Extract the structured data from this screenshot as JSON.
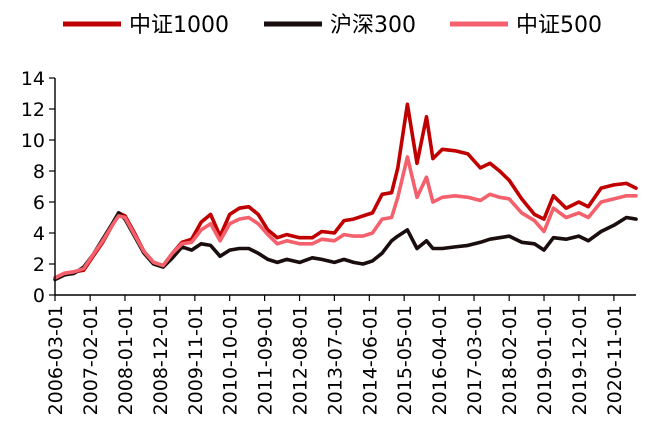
{
  "chart_data": {
    "type": "line",
    "title": "",
    "xlabel": "",
    "ylabel": "",
    "ylim": [
      0,
      14
    ],
    "yticks": [
      0,
      2,
      4,
      6,
      8,
      10,
      12,
      14
    ],
    "grid": false,
    "legend_position": "top",
    "x_tick_labels": [
      "2006-03-01",
      "2007-02-01",
      "2008-01-01",
      "2008-12-01",
      "2009-11-01",
      "2010-10-01",
      "2011-09-01",
      "2012-08-01",
      "2013-07-01",
      "2014-06-01",
      "2015-05-01",
      "2016-04-01",
      "2017-03-01",
      "2018-02-01",
      "2019-01-01",
      "2019-12-01",
      "2020-11-01"
    ],
    "x_range": [
      "2006-03-01",
      "2021-06-01"
    ],
    "series": [
      {
        "name": "中证1000",
        "color": "#c00000",
        "points": [
          [
            "2006-03-01",
            1.1
          ],
          [
            "2006-06-01",
            1.4
          ],
          [
            "2006-09-01",
            1.5
          ],
          [
            "2006-12-01",
            1.6
          ],
          [
            "2007-03-01",
            2.5
          ],
          [
            "2007-06-01",
            3.4
          ],
          [
            "2007-09-01",
            4.5
          ],
          [
            "2007-11-01",
            5.3
          ],
          [
            "2008-01-01",
            5.1
          ],
          [
            "2008-04-01",
            4.0
          ],
          [
            "2008-07-01",
            2.8
          ],
          [
            "2008-10-01",
            2.1
          ],
          [
            "2009-01-01",
            1.9
          ],
          [
            "2009-04-01",
            2.7
          ],
          [
            "2009-07-01",
            3.4
          ],
          [
            "2009-10-01",
            3.6
          ],
          [
            "2010-01-01",
            4.7
          ],
          [
            "2010-04-01",
            5.2
          ],
          [
            "2010-07-01",
            3.8
          ],
          [
            "2010-10-01",
            5.2
          ],
          [
            "2011-01-01",
            5.6
          ],
          [
            "2011-04-01",
            5.7
          ],
          [
            "2011-07-01",
            5.2
          ],
          [
            "2011-10-01",
            4.2
          ],
          [
            "2012-01-01",
            3.7
          ],
          [
            "2012-04-01",
            3.9
          ],
          [
            "2012-08-01",
            3.7
          ],
          [
            "2012-12-01",
            3.7
          ],
          [
            "2013-03-01",
            4.1
          ],
          [
            "2013-07-01",
            4.0
          ],
          [
            "2013-10-01",
            4.8
          ],
          [
            "2014-01-01",
            4.9
          ],
          [
            "2014-04-01",
            5.1
          ],
          [
            "2014-07-01",
            5.3
          ],
          [
            "2014-10-01",
            6.5
          ],
          [
            "2015-01-01",
            6.6
          ],
          [
            "2015-03-01",
            8.2
          ],
          [
            "2015-06-01",
            12.3
          ],
          [
            "2015-09-01",
            8.5
          ],
          [
            "2015-12-01",
            11.5
          ],
          [
            "2016-02-01",
            8.8
          ],
          [
            "2016-05-01",
            9.4
          ],
          [
            "2016-09-01",
            9.3
          ],
          [
            "2017-01-01",
            9.1
          ],
          [
            "2017-05-01",
            8.2
          ],
          [
            "2017-08-01",
            8.5
          ],
          [
            "2017-11-01",
            8.0
          ],
          [
            "2018-02-01",
            7.4
          ],
          [
            "2018-06-01",
            6.2
          ],
          [
            "2018-10-01",
            5.2
          ],
          [
            "2019-01-01",
            4.9
          ],
          [
            "2019-04-01",
            6.4
          ],
          [
            "2019-08-01",
            5.6
          ],
          [
            "2019-12-01",
            6.0
          ],
          [
            "2020-03-01",
            5.7
          ],
          [
            "2020-07-01",
            6.9
          ],
          [
            "2020-11-01",
            7.1
          ],
          [
            "2021-03-01",
            7.2
          ],
          [
            "2021-06-01",
            6.9
          ]
        ]
      },
      {
        "name": "沪深300",
        "color": "#1a0d0d",
        "points": [
          [
            "2006-03-01",
            1.0
          ],
          [
            "2006-06-01",
            1.3
          ],
          [
            "2006-09-01",
            1.4
          ],
          [
            "2006-12-01",
            1.8
          ],
          [
            "2007-03-01",
            2.6
          ],
          [
            "2007-06-01",
            3.6
          ],
          [
            "2007-09-01",
            4.6
          ],
          [
            "2007-11-01",
            5.3
          ],
          [
            "2008-01-01",
            4.9
          ],
          [
            "2008-04-01",
            3.8
          ],
          [
            "2008-07-01",
            2.7
          ],
          [
            "2008-10-01",
            2.0
          ],
          [
            "2009-01-01",
            1.8
          ],
          [
            "2009-04-01",
            2.4
          ],
          [
            "2009-07-01",
            3.1
          ],
          [
            "2009-10-01",
            2.9
          ],
          [
            "2010-01-01",
            3.3
          ],
          [
            "2010-04-01",
            3.2
          ],
          [
            "2010-07-01",
            2.5
          ],
          [
            "2010-10-01",
            2.9
          ],
          [
            "2011-01-01",
            3.0
          ],
          [
            "2011-04-01",
            3.0
          ],
          [
            "2011-07-01",
            2.7
          ],
          [
            "2011-10-01",
            2.3
          ],
          [
            "2012-01-01",
            2.1
          ],
          [
            "2012-04-01",
            2.3
          ],
          [
            "2012-08-01",
            2.1
          ],
          [
            "2012-12-01",
            2.4
          ],
          [
            "2013-03-01",
            2.3
          ],
          [
            "2013-07-01",
            2.1
          ],
          [
            "2013-10-01",
            2.3
          ],
          [
            "2014-01-01",
            2.1
          ],
          [
            "2014-04-01",
            2.0
          ],
          [
            "2014-07-01",
            2.2
          ],
          [
            "2014-10-01",
            2.7
          ],
          [
            "2015-01-01",
            3.5
          ],
          [
            "2015-03-01",
            3.8
          ],
          [
            "2015-06-01",
            4.2
          ],
          [
            "2015-09-01",
            3.0
          ],
          [
            "2015-12-01",
            3.5
          ],
          [
            "2016-02-01",
            3.0
          ],
          [
            "2016-05-01",
            3.0
          ],
          [
            "2016-09-01",
            3.1
          ],
          [
            "2017-01-01",
            3.2
          ],
          [
            "2017-05-01",
            3.4
          ],
          [
            "2017-08-01",
            3.6
          ],
          [
            "2017-11-01",
            3.7
          ],
          [
            "2018-02-01",
            3.8
          ],
          [
            "2018-06-01",
            3.4
          ],
          [
            "2018-10-01",
            3.3
          ],
          [
            "2019-01-01",
            2.9
          ],
          [
            "2019-04-01",
            3.7
          ],
          [
            "2019-08-01",
            3.6
          ],
          [
            "2019-12-01",
            3.8
          ],
          [
            "2020-03-01",
            3.5
          ],
          [
            "2020-07-01",
            4.1
          ],
          [
            "2020-11-01",
            4.5
          ],
          [
            "2021-03-01",
            5.0
          ],
          [
            "2021-06-01",
            4.9
          ]
        ]
      },
      {
        "name": "中证500",
        "color": "#f4606c",
        "points": [
          [
            "2006-03-01",
            1.1
          ],
          [
            "2006-06-01",
            1.4
          ],
          [
            "2006-09-01",
            1.5
          ],
          [
            "2006-12-01",
            1.7
          ],
          [
            "2007-03-01",
            2.6
          ],
          [
            "2007-06-01",
            3.5
          ],
          [
            "2007-09-01",
            4.5
          ],
          [
            "2007-11-01",
            5.1
          ],
          [
            "2008-01-01",
            5.0
          ],
          [
            "2008-04-01",
            3.9
          ],
          [
            "2008-07-01",
            2.8
          ],
          [
            "2008-10-01",
            2.1
          ],
          [
            "2009-01-01",
            1.9
          ],
          [
            "2009-04-01",
            2.7
          ],
          [
            "2009-07-01",
            3.3
          ],
          [
            "2009-10-01",
            3.4
          ],
          [
            "2010-01-01",
            4.2
          ],
          [
            "2010-04-01",
            4.6
          ],
          [
            "2010-07-01",
            3.5
          ],
          [
            "2010-10-01",
            4.6
          ],
          [
            "2011-01-01",
            4.9
          ],
          [
            "2011-04-01",
            5.0
          ],
          [
            "2011-07-01",
            4.6
          ],
          [
            "2011-10-01",
            3.9
          ],
          [
            "2012-01-01",
            3.3
          ],
          [
            "2012-04-01",
            3.5
          ],
          [
            "2012-08-01",
            3.3
          ],
          [
            "2012-12-01",
            3.3
          ],
          [
            "2013-03-01",
            3.6
          ],
          [
            "2013-07-01",
            3.5
          ],
          [
            "2013-10-01",
            3.9
          ],
          [
            "2014-01-01",
            3.8
          ],
          [
            "2014-04-01",
            3.8
          ],
          [
            "2014-07-01",
            4.0
          ],
          [
            "2014-10-01",
            4.9
          ],
          [
            "2015-01-01",
            5.0
          ],
          [
            "2015-03-01",
            6.3
          ],
          [
            "2015-06-01",
            8.9
          ],
          [
            "2015-09-01",
            6.3
          ],
          [
            "2015-12-01",
            7.6
          ],
          [
            "2016-02-01",
            6.0
          ],
          [
            "2016-05-01",
            6.3
          ],
          [
            "2016-09-01",
            6.4
          ],
          [
            "2017-01-01",
            6.3
          ],
          [
            "2017-05-01",
            6.1
          ],
          [
            "2017-08-01",
            6.5
          ],
          [
            "2017-11-01",
            6.3
          ],
          [
            "2018-02-01",
            6.2
          ],
          [
            "2018-06-01",
            5.3
          ],
          [
            "2018-10-01",
            4.8
          ],
          [
            "2019-01-01",
            4.1
          ],
          [
            "2019-04-01",
            5.6
          ],
          [
            "2019-08-01",
            5.0
          ],
          [
            "2019-12-01",
            5.3
          ],
          [
            "2020-03-01",
            5.0
          ],
          [
            "2020-07-01",
            6.0
          ],
          [
            "2020-11-01",
            6.2
          ],
          [
            "2021-03-01",
            6.4
          ],
          [
            "2021-06-01",
            6.4
          ]
        ]
      }
    ]
  }
}
